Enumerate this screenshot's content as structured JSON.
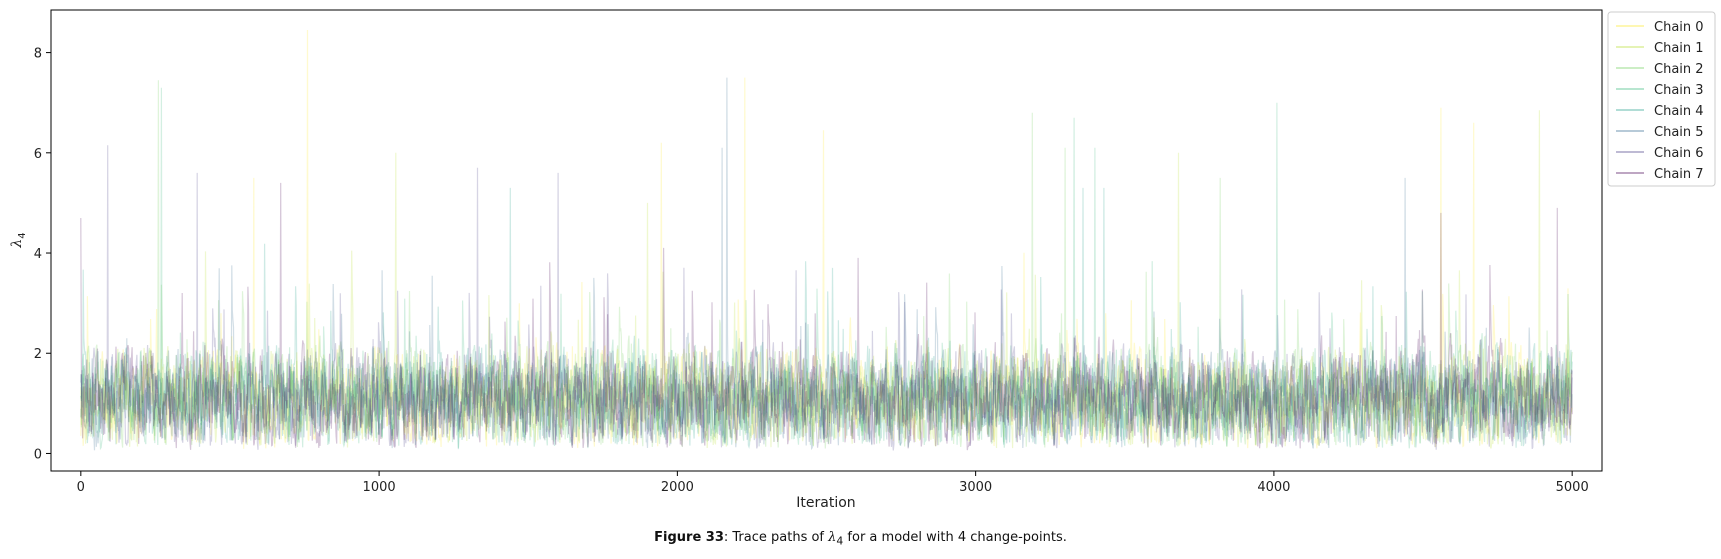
{
  "chart_data": {
    "type": "line",
    "xlabel": "Iteration",
    "ylabel": "λ",
    "ylabel_sub": "4",
    "xlim": [
      -100,
      5100
    ],
    "ylim": [
      -0.35,
      8.85
    ],
    "x_ticks": [
      0,
      1000,
      2000,
      3000,
      4000,
      5000
    ],
    "y_ticks": [
      0,
      2,
      4,
      6,
      8
    ],
    "n_iterations": 5000,
    "legend_position": "upper-right-outside",
    "grid": false,
    "series": [
      {
        "name": "Chain 0",
        "color": "#fde725",
        "spikes": [
          [
            760,
            8.45
          ],
          [
            1945,
            6.2
          ],
          [
            2225,
            7.5
          ],
          [
            2490,
            6.45
          ],
          [
            580,
            5.5
          ],
          [
            4560,
            6.9
          ],
          [
            4670,
            6.6
          ]
        ]
      },
      {
        "name": "Chain 1",
        "color": "#b5de2b",
        "spikes": [
          [
            1055,
            6.0
          ],
          [
            3680,
            6.0
          ],
          [
            1900,
            5.0
          ],
          [
            4890,
            6.85
          ]
        ]
      },
      {
        "name": "Chain 2",
        "color": "#6ece58",
        "spikes": [
          [
            260,
            7.45
          ],
          [
            3190,
            6.8
          ],
          [
            3300,
            6.1
          ],
          [
            3820,
            5.5
          ]
        ]
      },
      {
        "name": "Chain 3",
        "color": "#35b779",
        "spikes": [
          [
            270,
            7.3
          ],
          [
            3330,
            6.7
          ],
          [
            3400,
            6.1
          ],
          [
            4010,
            7.0
          ]
        ]
      },
      {
        "name": "Chain 4",
        "color": "#1f9e89",
        "spikes": [
          [
            3360,
            5.3
          ],
          [
            3430,
            5.3
          ],
          [
            1440,
            5.3
          ]
        ]
      },
      {
        "name": "Chain 5",
        "color": "#31688e",
        "spikes": [
          [
            2165,
            7.5
          ],
          [
            4440,
            5.5
          ],
          [
            2150,
            6.1
          ]
        ]
      },
      {
        "name": "Chain 6",
        "color": "#443983",
        "spikes": [
          [
            90,
            6.15
          ],
          [
            390,
            5.6
          ],
          [
            1600,
            5.6
          ],
          [
            1330,
            5.7
          ]
        ]
      },
      {
        "name": "Chain 7",
        "color": "#440154",
        "spikes": [
          [
            0,
            4.7
          ],
          [
            670,
            5.4
          ],
          [
            4560,
            4.8
          ],
          [
            4950,
            4.9
          ]
        ]
      }
    ]
  },
  "caption": {
    "bold": "Figure 33",
    "pre": ": Trace paths of ",
    "symbol": "λ",
    "symbol_sub": "4",
    "post": " for a model with 4 change-points."
  }
}
